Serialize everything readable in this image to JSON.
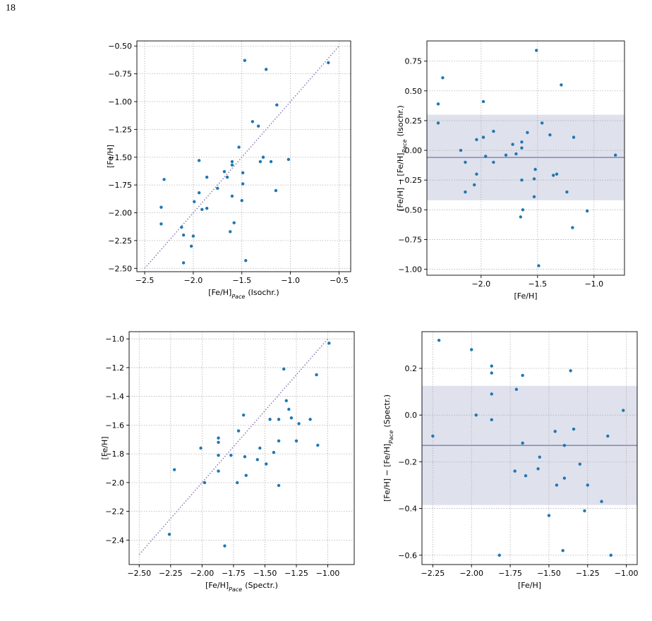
{
  "page_number": "18",
  "chart_data": [
    {
      "type": "scatter",
      "color": "#1f77b4",
      "xlabel": {
        "before": "[Fe/H]",
        "sub": "Pace",
        "after": "(Isochr.)"
      },
      "ylabel": {
        "before": "[Fe/H]"
      },
      "xlim": [
        -2.58,
        -0.38
      ],
      "ylim": [
        -2.53,
        -0.454
      ],
      "xticks": [
        {
          "value": -2.5,
          "label": "−2.5"
        },
        {
          "value": -2.0,
          "label": "−2.0"
        },
        {
          "value": -1.5,
          "label": "−1.5"
        },
        {
          "value": -1.0,
          "label": "−1.0"
        },
        {
          "value": -0.5,
          "label": "−0.5"
        }
      ],
      "yticks": [
        {
          "value": -0.5,
          "label": "−0.50"
        },
        {
          "value": -0.75,
          "label": "−0.75"
        },
        {
          "value": -1.0,
          "label": "−1.00"
        },
        {
          "value": -1.25,
          "label": "−1.25"
        },
        {
          "value": -1.5,
          "label": "−1.50"
        },
        {
          "value": -1.75,
          "label": "−1.75"
        },
        {
          "value": -2.0,
          "label": "−2.00"
        },
        {
          "value": -2.25,
          "label": "−2.25"
        },
        {
          "value": -2.5,
          "label": "−2.50"
        }
      ],
      "grid": true,
      "reference_line": {
        "x": [
          -2.5,
          -0.5
        ],
        "values": [
          -2.5,
          -0.5
        ],
        "color": "#8a78b8"
      },
      "x": [
        -2.33,
        -2.33,
        -2.3,
        -2.12,
        -2.1,
        -2.1,
        -2.02,
        -2.0,
        -1.99,
        -1.94,
        -1.94,
        -1.91,
        -1.86,
        -1.86,
        -1.75,
        -1.68,
        -1.65,
        -1.6,
        -1.6,
        -1.6,
        -1.62,
        -1.58,
        -1.53,
        -1.49,
        -1.49,
        -1.5,
        -1.47,
        -1.46,
        -1.39,
        -1.33,
        -1.31,
        -1.28,
        -1.25,
        -1.2,
        -1.14,
        -1.15,
        -1.02,
        -0.61
      ],
      "values": [
        -1.95,
        -2.1,
        -1.7,
        -2.13,
        -2.2,
        -2.45,
        -2.3,
        -2.21,
        -1.9,
        -1.53,
        -1.82,
        -1.97,
        -1.68,
        -1.96,
        -1.78,
        -1.63,
        -1.68,
        -1.57,
        -1.54,
        -1.85,
        -2.17,
        -2.09,
        -1.41,
        -1.64,
        -1.74,
        -1.89,
        -0.63,
        -2.43,
        -1.18,
        -1.22,
        -1.54,
        -1.5,
        -0.71,
        -1.54,
        -1.03,
        -1.8,
        -1.52,
        -0.65
      ]
    },
    {
      "type": "scatter",
      "color": "#1f77b4",
      "xlabel": {
        "before": "[Fe/H]"
      },
      "ylabel": {
        "before": "[Fe/H] − [Fe/H]",
        "sub": "Pace",
        "after": "(Isochr.)"
      },
      "xlim": [
        -2.48,
        -0.73
      ],
      "ylim": [
        -1.05,
        0.92
      ],
      "xticks": [
        {
          "value": -2.0,
          "label": "−2.0"
        },
        {
          "value": -1.5,
          "label": "−1.5"
        },
        {
          "value": -1.0,
          "label": "−1.0"
        }
      ],
      "yticks": [
        {
          "value": 0.75,
          "label": "0.75"
        },
        {
          "value": 0.5,
          "label": "0.50"
        },
        {
          "value": 0.25,
          "label": "0.25"
        },
        {
          "value": 0,
          "label": "0.00"
        },
        {
          "value": -0.25,
          "label": "−0.25"
        },
        {
          "value": -0.5,
          "label": "−0.50"
        },
        {
          "value": -0.75,
          "label": "−0.75"
        },
        {
          "value": -1.0,
          "label": "−1.00"
        }
      ],
      "grid": true,
      "band": {
        "lower": -0.42,
        "upper": 0.3,
        "color": "#dfe1ec"
      },
      "mean_line": {
        "value": -0.06,
        "color": "#8486b8"
      },
      "x": [
        -2.38,
        -2.34,
        -2.38,
        -2.18,
        -2.14,
        -2.14,
        -2.06,
        -2.04,
        -2.04,
        -1.98,
        -1.98,
        -1.96,
        -1.89,
        -1.89,
        -1.78,
        -1.72,
        -1.69,
        -1.64,
        -1.64,
        -1.64,
        -1.65,
        -1.63,
        -1.59,
        -1.53,
        -1.53,
        -1.52,
        -1.51,
        -1.49,
        -1.46,
        -1.39,
        -1.36,
        -1.33,
        -1.29,
        -1.24,
        -1.18,
        -1.19,
        -1.06,
        -0.81
      ],
      "values": [
        0.39,
        0.61,
        0.23,
        0.0,
        -0.1,
        -0.35,
        -0.29,
        -0.2,
        0.09,
        0.41,
        0.11,
        -0.05,
        0.16,
        -0.1,
        -0.04,
        0.05,
        -0.03,
        0.07,
        0.02,
        -0.25,
        -0.56,
        -0.5,
        0.15,
        -0.24,
        -0.39,
        -0.16,
        0.84,
        -0.97,
        0.23,
        0.13,
        -0.21,
        -0.2,
        0.55,
        -0.35,
        0.11,
        -0.65,
        -0.51,
        -0.04
      ]
    },
    {
      "type": "scatter",
      "color": "#1f77b4",
      "xlabel": {
        "before": "[Fe/H]",
        "sub": "Pace",
        "after": "(Spectr.)"
      },
      "ylabel": {
        "before": "[Fe/H]"
      },
      "xlim": [
        -2.58,
        -0.79
      ],
      "ylim": [
        -2.57,
        -0.95
      ],
      "xticks": [
        {
          "value": -2.5,
          "label": "−2.50"
        },
        {
          "value": -2.25,
          "label": "−2.25"
        },
        {
          "value": -2.0,
          "label": "−2.00"
        },
        {
          "value": -1.75,
          "label": "−1.75"
        },
        {
          "value": -1.5,
          "label": "−1.50"
        },
        {
          "value": -1.25,
          "label": "−1.25"
        },
        {
          "value": -1.0,
          "label": "−1.00"
        }
      ],
      "yticks": [
        {
          "value": -1.0,
          "label": "−1.0"
        },
        {
          "value": -1.2,
          "label": "−1.2"
        },
        {
          "value": -1.4,
          "label": "−1.4"
        },
        {
          "value": -1.6,
          "label": "−1.6"
        },
        {
          "value": -1.8,
          "label": "−1.8"
        },
        {
          "value": -2.0,
          "label": "−2.0"
        },
        {
          "value": -2.2,
          "label": "−2.2"
        },
        {
          "value": -2.4,
          "label": "−2.4"
        }
      ],
      "grid": true,
      "reference_line": {
        "x": [
          -2.5,
          -1.0
        ],
        "values": [
          -2.5,
          -1.0
        ],
        "color": "#8a78b8"
      },
      "x": [
        -2.26,
        -2.22,
        -2.01,
        -1.98,
        -1.87,
        -1.87,
        -1.87,
        -1.87,
        -1.82,
        -1.77,
        -1.72,
        -1.71,
        -1.67,
        -1.66,
        -1.65,
        -1.56,
        -1.54,
        -1.49,
        -1.46,
        -1.43,
        -1.39,
        -1.39,
        -1.39,
        -1.35,
        -1.33,
        -1.31,
        -1.29,
        -1.25,
        -1.23,
        -1.14,
        -1.09,
        -1.08,
        -0.99
      ],
      "values": [
        -2.36,
        -1.91,
        -1.76,
        -2.0,
        -1.69,
        -1.72,
        -1.81,
        -1.92,
        -2.44,
        -1.81,
        -2.0,
        -1.64,
        -1.53,
        -1.82,
        -1.95,
        -1.84,
        -1.76,
        -1.87,
        -1.56,
        -1.79,
        -2.02,
        -1.56,
        -1.71,
        -1.21,
        -1.43,
        -1.49,
        -1.55,
        -1.71,
        -1.59,
        -1.56,
        -1.25,
        -1.74,
        -1.03
      ]
    },
    {
      "type": "scatter",
      "color": "#1f77b4",
      "xlabel": {
        "before": "[Fe/H]"
      },
      "ylabel": {
        "before": "[Fe/H] − [Fe/H]",
        "sub": "Pace",
        "after": "(Spectr.)"
      },
      "xlim": [
        -2.32,
        -0.93
      ],
      "ylim": [
        -0.64,
        0.357
      ],
      "xticks": [
        {
          "value": -2.25,
          "label": "−2.25"
        },
        {
          "value": -2.0,
          "label": "−2.00"
        },
        {
          "value": -1.75,
          "label": "−1.75"
        },
        {
          "value": -1.5,
          "label": "−1.50"
        },
        {
          "value": -1.25,
          "label": "−1.25"
        },
        {
          "value": -1.0,
          "label": "−1.00"
        }
      ],
      "yticks": [
        {
          "value": 0.2,
          "label": "0.2"
        },
        {
          "value": 0,
          "label": "0.0"
        },
        {
          "value": -0.2,
          "label": "−0.2"
        },
        {
          "value": -0.4,
          "label": "−0.4"
        },
        {
          "value": -0.6,
          "label": "−0.6"
        }
      ],
      "grid": true,
      "band": {
        "lower": -0.385,
        "upper": 0.125,
        "color": "#dfe1ec"
      },
      "mean_line": {
        "value": -0.13,
        "color": "#8486b8"
      },
      "x": [
        -2.25,
        -2.21,
        -2.0,
        -1.97,
        -1.87,
        -1.87,
        -1.87,
        -1.87,
        -1.82,
        -1.71,
        -1.67,
        -1.67,
        -1.65,
        -1.72,
        -1.57,
        -1.56,
        -1.5,
        -1.46,
        -1.45,
        -1.41,
        -1.4,
        -1.4,
        -1.36,
        -1.34,
        -1.3,
        -1.27,
        -1.25,
        -1.16,
        -1.12,
        -1.1,
        -1.02
      ],
      "values": [
        -0.09,
        0.32,
        0.28,
        0.0,
        0.21,
        0.18,
        0.09,
        -0.02,
        -0.6,
        0.11,
        0.17,
        -0.12,
        -0.26,
        -0.24,
        -0.23,
        -0.18,
        -0.43,
        -0.07,
        -0.3,
        -0.58,
        -0.27,
        -0.13,
        0.19,
        -0.06,
        -0.21,
        -0.41,
        -0.3,
        -0.37,
        -0.09,
        -0.6,
        0.02
      ]
    }
  ]
}
